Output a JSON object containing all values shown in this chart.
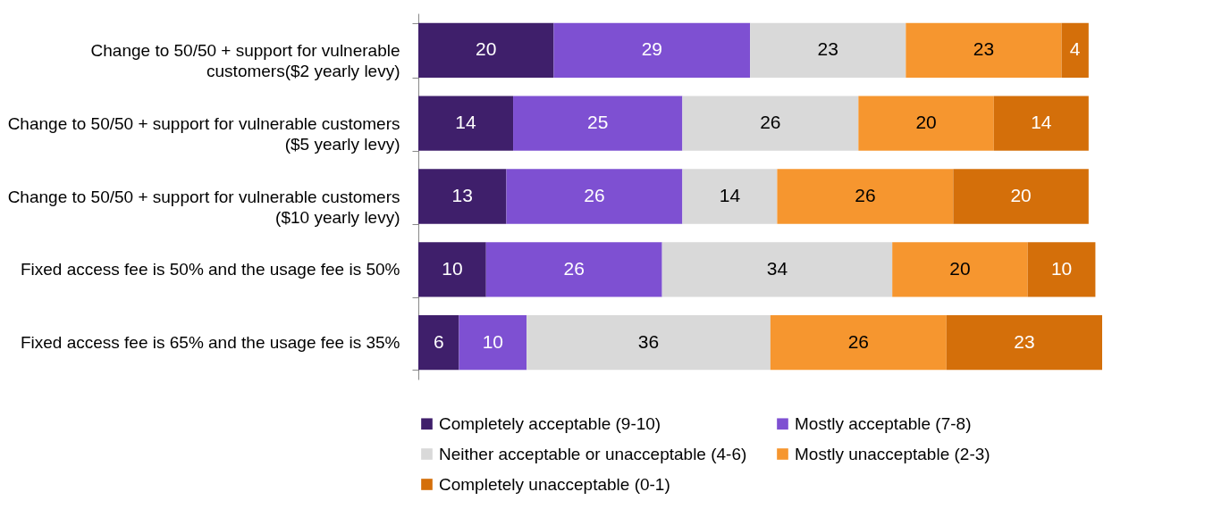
{
  "chart_data": {
    "type": "bar",
    "orientation": "horizontal",
    "stacked": true,
    "data_labels": true,
    "legend": "bottom",
    "grid": false,
    "categories": [
      "Change to 50/50 + support for vulnerable customers($2 yearly levy)",
      "Change to 50/50 + support for vulnerable customers ($5 yearly levy)",
      "Change to 50/50 + support for vulnerable customers ($10 yearly levy)",
      "Fixed access fee is 50% and the usage fee is 50%",
      "Fixed access fee is 65% and the usage fee is 35%"
    ],
    "series": [
      {
        "name": "Completely acceptable (9-10)",
        "color": "#3f1f6b",
        "values": [
          20,
          14,
          13,
          10,
          6
        ]
      },
      {
        "name": "Mostly acceptable (7-8)",
        "color": "#7e50d2",
        "values": [
          29,
          25,
          26,
          26,
          10
        ]
      },
      {
        "name": "Neither acceptable or unacceptable (4-6)",
        "color": "#d9d9d9",
        "values": [
          23,
          26,
          14,
          34,
          36
        ]
      },
      {
        "name": "Mostly unacceptable (2-3)",
        "color": "#f6962f",
        "values": [
          23,
          20,
          26,
          20,
          26
        ]
      },
      {
        "name": "Completely unacceptable (0-1)",
        "color": "#d46f0a",
        "values": [
          4,
          14,
          20,
          10,
          23
        ]
      }
    ]
  }
}
